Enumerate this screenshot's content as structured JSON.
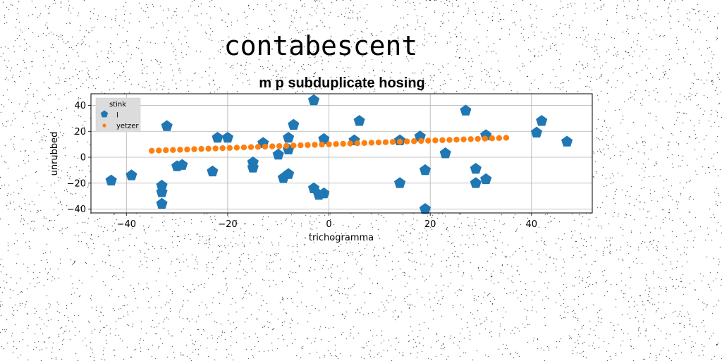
{
  "figure": {
    "suptitle": "contabescent",
    "background": "#ffffff"
  },
  "chart_data": {
    "type": "scatter",
    "title": "m p subduplicate hosing",
    "xlabel": "trichogramma",
    "ylabel": "unrubbed",
    "xlim": [
      -47,
      52
    ],
    "ylim": [
      -43,
      49
    ],
    "xticks": [
      -40,
      -20,
      0,
      20,
      40
    ],
    "yticks": [
      -40,
      -20,
      0,
      20,
      40
    ],
    "grid": true,
    "legend": {
      "title": "stink",
      "placement": "top-left"
    },
    "series": [
      {
        "name": "l",
        "marker": "pentagon",
        "color": "#1f77b4",
        "points": [
          [
            -43,
            -18
          ],
          [
            -39,
            -14
          ],
          [
            -33,
            -22
          ],
          [
            -33,
            -27
          ],
          [
            -33,
            -36
          ],
          [
            -32,
            24
          ],
          [
            -30,
            -7
          ],
          [
            -29,
            -6
          ],
          [
            -23,
            -11
          ],
          [
            -22,
            15
          ],
          [
            -20,
            15
          ],
          [
            -15,
            -4
          ],
          [
            -15,
            -8
          ],
          [
            -13,
            11
          ],
          [
            -10,
            2
          ],
          [
            -9,
            -16
          ],
          [
            -8,
            -13
          ],
          [
            -8,
            6
          ],
          [
            -8,
            15
          ],
          [
            -7,
            25
          ],
          [
            -3,
            44
          ],
          [
            -3,
            -24
          ],
          [
            -2,
            -29
          ],
          [
            -1,
            -28
          ],
          [
            -1,
            14
          ],
          [
            5,
            13
          ],
          [
            6,
            28
          ],
          [
            14,
            13
          ],
          [
            14,
            -20
          ],
          [
            18,
            16
          ],
          [
            19,
            -10
          ],
          [
            19,
            -40
          ],
          [
            23,
            3
          ],
          [
            27,
            36
          ],
          [
            29,
            -9
          ],
          [
            29,
            -20
          ],
          [
            31,
            -17
          ],
          [
            31,
            17
          ],
          [
            41,
            19
          ],
          [
            42,
            28
          ],
          [
            47,
            12
          ]
        ]
      },
      {
        "name": "yetzer",
        "marker": "circle",
        "color": "#ff7f0e",
        "points": [
          [
            -35,
            5.0
          ],
          [
            -33.6,
            5.2
          ],
          [
            -32.2,
            5.4
          ],
          [
            -30.8,
            5.6
          ],
          [
            -29.4,
            5.8
          ],
          [
            -28,
            6.0
          ],
          [
            -26.6,
            6.2
          ],
          [
            -25.2,
            6.4
          ],
          [
            -23.8,
            6.6
          ],
          [
            -22.4,
            6.8
          ],
          [
            -21,
            7.0
          ],
          [
            -19.6,
            7.2
          ],
          [
            -18.2,
            7.4
          ],
          [
            -16.8,
            7.6
          ],
          [
            -15.4,
            7.8
          ],
          [
            -14,
            8.0
          ],
          [
            -12.6,
            8.2
          ],
          [
            -11.2,
            8.4
          ],
          [
            -9.8,
            8.6
          ],
          [
            -8.4,
            8.8
          ],
          [
            -7,
            9.0
          ],
          [
            -5.6,
            9.2
          ],
          [
            -4.2,
            9.4
          ],
          [
            -2.8,
            9.6
          ],
          [
            -1.4,
            9.8
          ],
          [
            0,
            10.0
          ],
          [
            1.4,
            10.2
          ],
          [
            2.8,
            10.4
          ],
          [
            4.2,
            10.6
          ],
          [
            5.6,
            10.8
          ],
          [
            7,
            11.0
          ],
          [
            8.4,
            11.2
          ],
          [
            9.8,
            11.4
          ],
          [
            11.2,
            11.6
          ],
          [
            12.6,
            11.8
          ],
          [
            14,
            12.0
          ],
          [
            15.4,
            12.2
          ],
          [
            16.8,
            12.4
          ],
          [
            18.2,
            12.6
          ],
          [
            19.6,
            12.8
          ],
          [
            21,
            13.0
          ],
          [
            22.4,
            13.2
          ],
          [
            23.8,
            13.4
          ],
          [
            25.2,
            13.6
          ],
          [
            26.6,
            13.8
          ],
          [
            28,
            14.0
          ],
          [
            29.4,
            14.2
          ],
          [
            30.8,
            14.4
          ],
          [
            32.2,
            14.6
          ],
          [
            33.6,
            14.8
          ],
          [
            35,
            15.0
          ]
        ]
      }
    ]
  }
}
